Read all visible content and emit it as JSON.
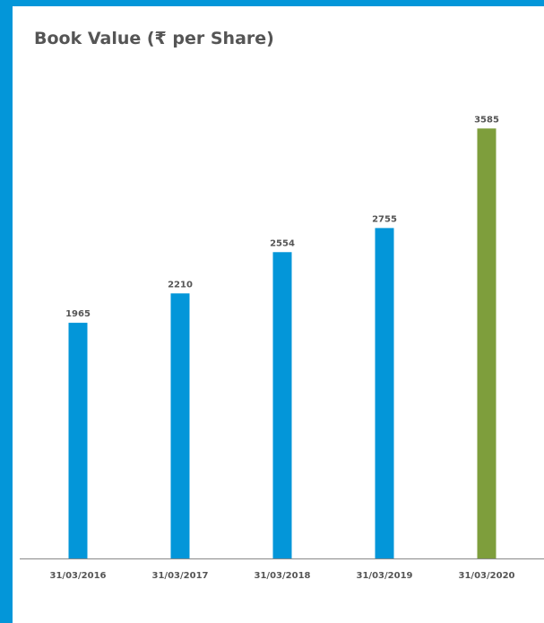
{
  "chart_data": {
    "type": "bar",
    "title": "Book Value (₹ per Share)",
    "xlabel": "",
    "ylabel": "",
    "categories": [
      "31/03/2016",
      "31/03/2017",
      "31/03/2018",
      "31/03/2019",
      "31/03/2020"
    ],
    "values": [
      1965,
      2210,
      2554,
      2755,
      3585
    ],
    "data_labels": [
      "1965",
      "2210",
      "2554",
      "2755",
      "3585"
    ],
    "ylim": [
      0,
      4000
    ],
    "grid": false,
    "legend": "none",
    "colors": {
      "default_bar": "#0396D9",
      "highlight_bar": "#7E9E3C",
      "frame": "#0396D9",
      "text": "#555555",
      "axis": "#888888"
    },
    "highlight_index": 4
  }
}
